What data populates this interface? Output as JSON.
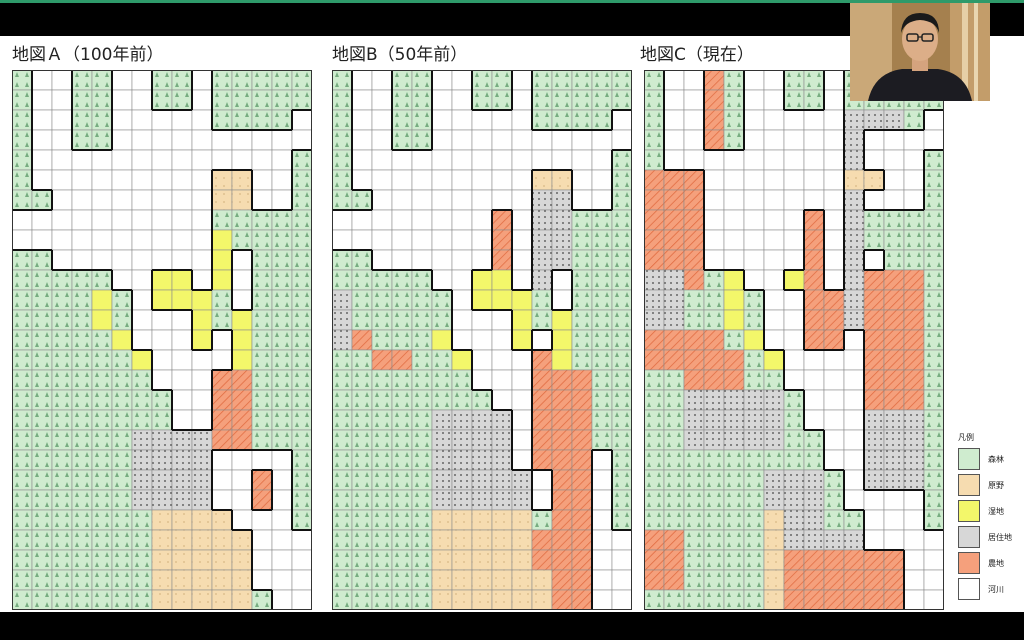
{
  "maps": [
    {
      "id": "A",
      "title": "地図Ａ（100年前）"
    },
    {
      "id": "B",
      "title": "地図B（50年前）"
    },
    {
      "id": "C",
      "title": "地図C（現在）"
    }
  ],
  "legend": {
    "title": "凡例",
    "items": [
      {
        "key": "forest",
        "label": "森林"
      },
      {
        "key": "field",
        "label": "原野"
      },
      {
        "key": "wetland",
        "label": "湿地"
      },
      {
        "key": "residential",
        "label": "居住地"
      },
      {
        "key": "farm",
        "label": "農地"
      },
      {
        "key": "river",
        "label": "河川"
      }
    ]
  },
  "colors": {
    "forest": "#cfeccf",
    "field": "#f6dcb0",
    "wetland": "#f3f76a",
    "residential": "#d7d7d7",
    "farm": "#f5a07c",
    "river": "#ffffff",
    "grid": "#8a8a8a",
    "accent": "#2e9a6a"
  },
  "video": {
    "participant": "presenter-webcam"
  }
}
